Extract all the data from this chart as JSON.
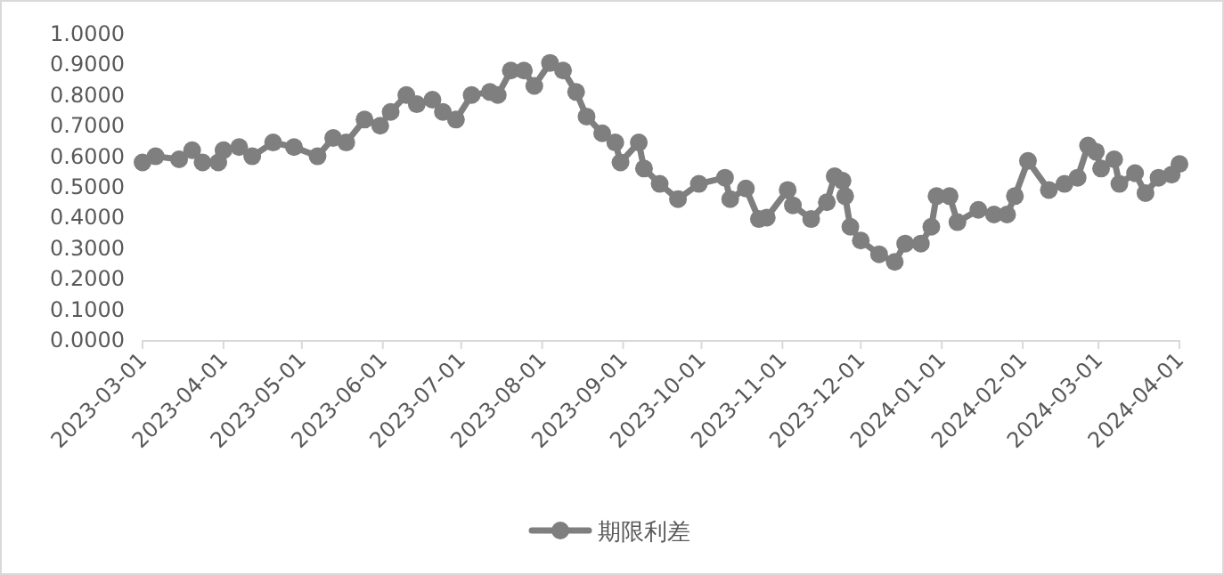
{
  "chart_data": {
    "type": "line",
    "x": [
      "2023-03-01",
      "2023-03-06",
      "2023-03-15",
      "2023-03-20",
      "2023-03-24",
      "2023-03-30",
      "2023-04-01",
      "2023-04-07",
      "2023-04-12",
      "2023-04-20",
      "2023-04-28",
      "2023-05-07",
      "2023-05-13",
      "2023-05-18",
      "2023-05-25",
      "2023-05-31",
      "2023-06-04",
      "2023-06-10",
      "2023-06-14",
      "2023-06-20",
      "2023-06-24",
      "2023-06-29",
      "2023-07-05",
      "2023-07-12",
      "2023-07-15",
      "2023-07-20",
      "2023-07-25",
      "2023-07-29",
      "2023-08-04",
      "2023-08-09",
      "2023-08-14",
      "2023-08-18",
      "2023-08-24",
      "2023-08-29",
      "2023-08-31",
      "2023-09-07",
      "2023-09-09",
      "2023-09-15",
      "2023-09-22",
      "2023-09-30",
      "2023-10-10",
      "2023-10-12",
      "2023-10-18",
      "2023-10-23",
      "2023-10-26",
      "2023-11-03",
      "2023-11-05",
      "2023-11-12",
      "2023-11-18",
      "2023-11-21",
      "2023-11-24",
      "2023-11-25",
      "2023-11-27",
      "2023-12-01",
      "2023-12-08",
      "2023-12-14",
      "2023-12-18",
      "2023-12-24",
      "2023-12-28",
      "2023-12-30",
      "2024-01-04",
      "2024-01-07",
      "2024-01-15",
      "2024-01-21",
      "2024-01-26",
      "2024-01-29",
      "2024-02-03",
      "2024-02-11",
      "2024-02-17",
      "2024-02-22",
      "2024-02-26",
      "2024-02-29",
      "2024-03-02",
      "2024-03-07",
      "2024-03-09",
      "2024-03-15",
      "2024-03-19",
      "2024-03-24",
      "2024-03-29",
      "2024-04-01"
    ],
    "series": [
      {
        "name": "期限利差",
        "color": "#7f7f7f",
        "values": [
          0.58,
          0.6,
          0.59,
          0.62,
          0.58,
          0.58,
          0.62,
          0.63,
          0.6,
          0.645,
          0.63,
          0.6,
          0.66,
          0.645,
          0.72,
          0.7,
          0.745,
          0.8,
          0.77,
          0.785,
          0.745,
          0.72,
          0.8,
          0.81,
          0.8,
          0.88,
          0.88,
          0.83,
          0.905,
          0.88,
          0.81,
          0.73,
          0.675,
          0.645,
          0.58,
          0.645,
          0.56,
          0.51,
          0.46,
          0.51,
          0.53,
          0.46,
          0.495,
          0.395,
          0.4,
          0.49,
          0.44,
          0.395,
          0.45,
          0.535,
          0.52,
          0.47,
          0.37,
          0.325,
          0.28,
          0.255,
          0.315,
          0.315,
          0.37,
          0.47,
          0.47,
          0.385,
          0.425,
          0.41,
          0.41,
          0.47,
          0.585,
          0.49,
          0.51,
          0.53,
          0.635,
          0.615,
          0.56,
          0.59,
          0.51,
          0.545,
          0.48,
          0.53,
          0.54,
          0.575
        ]
      }
    ],
    "xlim": [
      "2023-03-01",
      "2024-04-01"
    ],
    "xticks": [
      "2023-03-01",
      "2023-04-01",
      "2023-05-01",
      "2023-06-01",
      "2023-07-01",
      "2023-08-01",
      "2023-09-01",
      "2023-10-01",
      "2023-11-01",
      "2023-12-01",
      "2024-01-01",
      "2024-02-01",
      "2024-03-01",
      "2024-04-01"
    ],
    "ylim": [
      0,
      1
    ],
    "yticks": [
      {
        "value": 0,
        "label": "0.0000"
      },
      {
        "value": 0.1,
        "label": "0.1000"
      },
      {
        "value": 0.2,
        "label": "0.2000"
      },
      {
        "value": 0.3,
        "label": "0.3000"
      },
      {
        "value": 0.4,
        "label": "0.4000"
      },
      {
        "value": 0.5,
        "label": "0.5000"
      },
      {
        "value": 0.6,
        "label": "0.6000"
      },
      {
        "value": 0.7,
        "label": "0.7000"
      },
      {
        "value": 0.8,
        "label": "0.8000"
      },
      {
        "value": 0.9,
        "label": "0.9000"
      },
      {
        "value": 1,
        "label": "1.0000"
      }
    ],
    "legend": "bottom",
    "marker": "circle",
    "line_style": "solid"
  }
}
